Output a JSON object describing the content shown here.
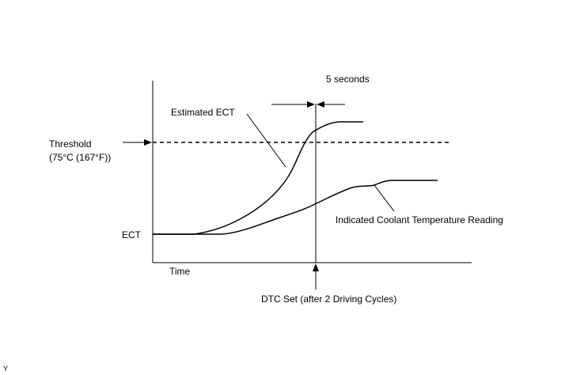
{
  "labels": {
    "duration": "5 seconds",
    "estimated_ect": "Estimated ECT",
    "threshold_line1": "Threshold",
    "threshold_line2": "(75°C (167°F))",
    "ect": "ECT",
    "indicated_reading": "Indicated Coolant Temperature Reading",
    "time": "Time",
    "dtc_set": "DTC Set (after 2 Driving Cycles)",
    "corner_mark": "Y"
  },
  "colors": {
    "ink": "#000000",
    "background": "#ffffff"
  }
}
